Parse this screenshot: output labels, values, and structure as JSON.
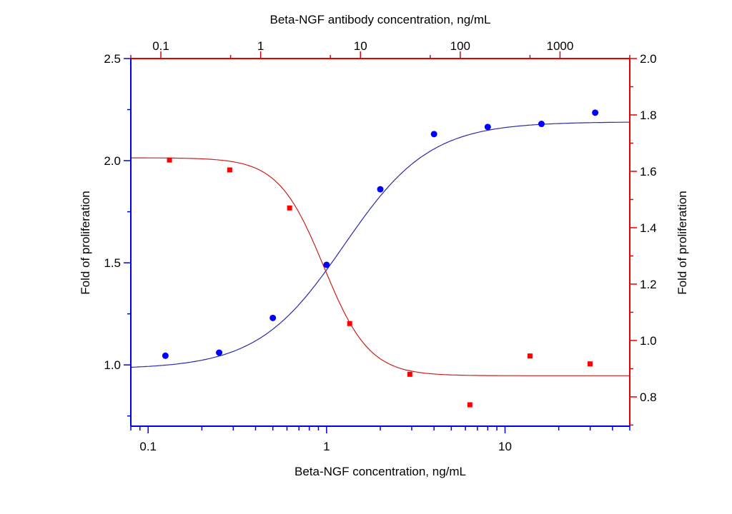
{
  "chart_data": [
    {
      "type": "scatter",
      "xlabel": "Beta-NGF concentration, ng/mL",
      "ylabel": "Fold of proliferation",
      "x_scale": "log",
      "xlim": [
        0.08,
        50
      ],
      "ylim": [
        0.7,
        2.5
      ],
      "x_ticks": [
        "0.1",
        "1",
        "10"
      ],
      "y_ticks": [
        "1.0",
        "1.5",
        "2.0",
        "2.5"
      ],
      "axis_color": "#0000e6",
      "marker": "circle",
      "marker_color": "#0000ff",
      "curve_color": "#2a2aa8",
      "x": [
        0.125,
        0.25,
        0.5,
        1,
        2,
        4,
        8,
        16,
        32
      ],
      "y": [
        1.045,
        1.06,
        1.23,
        1.49,
        1.86,
        2.13,
        2.165,
        2.18,
        2.235
      ],
      "fit": {
        "model": "4PL",
        "bottom": 0.98,
        "top": 2.19,
        "ec50": 1.25,
        "hill": 1.8
      }
    },
    {
      "type": "scatter",
      "xlabel": "Beta-NGF antibody concentration, ng/mL",
      "ylabel": "Fold of proliferation",
      "x_scale": "log",
      "xlim": [
        0.05,
        5000
      ],
      "ylim": [
        0.696,
        2.0
      ],
      "x_ticks": [
        "0.1",
        "1",
        "10",
        "100",
        "1000"
      ],
      "y_ticks": [
        "0.8",
        "1.0",
        "1.2",
        "1.4",
        "1.6",
        "1.8",
        "2.0"
      ],
      "axis_color": "#e60000",
      "marker": "square",
      "marker_color": "#ff0000",
      "curve_color": "#c8201c",
      "x": [
        0.122,
        0.49,
        1.95,
        7.8,
        31.25,
        125,
        500,
        2000
      ],
      "y": [
        1.64,
        1.605,
        1.47,
        1.06,
        0.88,
        0.772,
        0.945,
        0.917
      ],
      "fit": {
        "model": "4PL",
        "bottom": 0.875,
        "top": 1.648,
        "ec50": 4.3,
        "hill": 1.9
      }
    }
  ]
}
